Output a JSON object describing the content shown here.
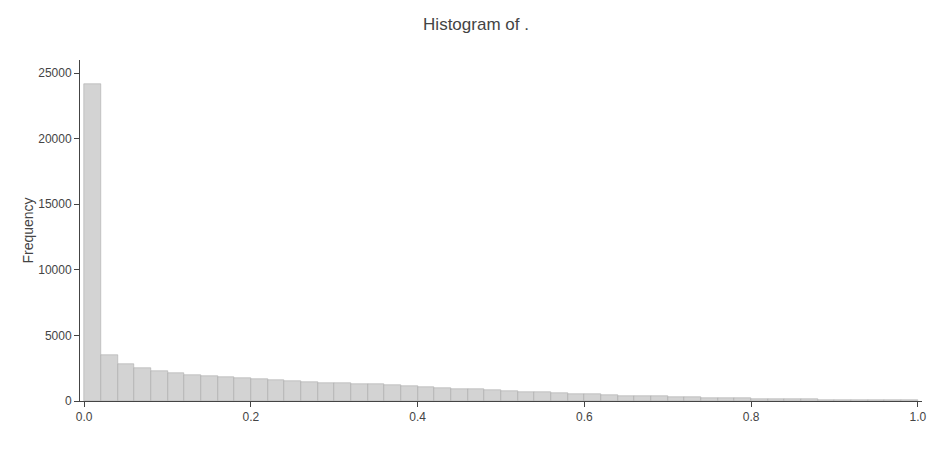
{
  "chart_data": {
    "type": "histogram",
    "title": "Histogram of .",
    "ylabel": "Frequency",
    "color": "#D3D3D3",
    "bins": [
      0.0,
      0.02,
      0.04,
      0.06,
      0.08,
      0.1,
      0.12,
      0.14,
      0.16,
      0.18,
      0.2,
      0.22,
      0.24,
      0.26,
      0.28,
      0.3,
      0.32,
      0.34,
      0.36,
      0.38,
      0.4,
      0.42,
      0.44,
      0.46,
      0.48,
      0.5,
      0.52,
      0.54,
      0.56,
      0.58,
      0.6,
      0.62,
      0.64,
      0.66,
      0.68,
      0.7,
      0.72,
      0.74,
      0.76,
      0.78,
      0.8,
      0.82,
      0.84,
      0.86,
      0.88,
      0.9,
      0.92,
      0.94,
      0.96,
      0.98,
      1.0
    ],
    "values": [
      24200,
      3500,
      2850,
      2550,
      2300,
      2100,
      2000,
      1900,
      1800,
      1750,
      1650,
      1600,
      1500,
      1450,
      1400,
      1380,
      1330,
      1280,
      1230,
      1150,
      1050,
      1000,
      950,
      880,
      820,
      760,
      710,
      660,
      610,
      560,
      500,
      450,
      410,
      375,
      345,
      315,
      285,
      265,
      245,
      225,
      185,
      165,
      145,
      125,
      105,
      90,
      80,
      70,
      60,
      50
    ],
    "xlim": [
      -0.005,
      1.005
    ],
    "xticks": [
      {
        "value": 0.0,
        "label": "0.0"
      },
      0.2,
      0.4,
      0.6,
      0.8,
      {
        "value": 1.0,
        "label": "1.0"
      }
    ],
    "ylim": [
      0,
      26000
    ],
    "yticks": [
      0,
      5000,
      10000,
      15000,
      20000,
      25000
    ],
    "grid": false
  }
}
